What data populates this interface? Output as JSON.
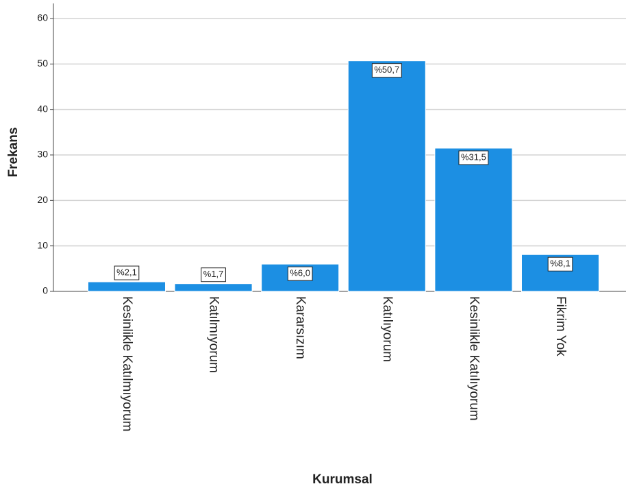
{
  "chart_data": {
    "type": "bar",
    "x_label": "Kurumsal",
    "y_label": "Frekans",
    "categories": [
      "Kesinlikle Katılmıyorum",
      "Katılmıyorum",
      "Kararsızım",
      "Katılıyorum",
      "Kesinlikle Katılıyorum",
      "Fikrim Yok"
    ],
    "values": [
      2.1,
      1.7,
      6.0,
      50.7,
      31.5,
      8.1
    ],
    "value_labels": [
      "%2,1",
      "%1,7",
      "%6,0",
      "%50,7",
      "%31,5",
      "%8,1"
    ],
    "color": "#1c8fe3",
    "ylim": [
      0,
      60
    ],
    "yticks": [
      0,
      10,
      20,
      30,
      40,
      50,
      60
    ],
    "grid": true
  }
}
